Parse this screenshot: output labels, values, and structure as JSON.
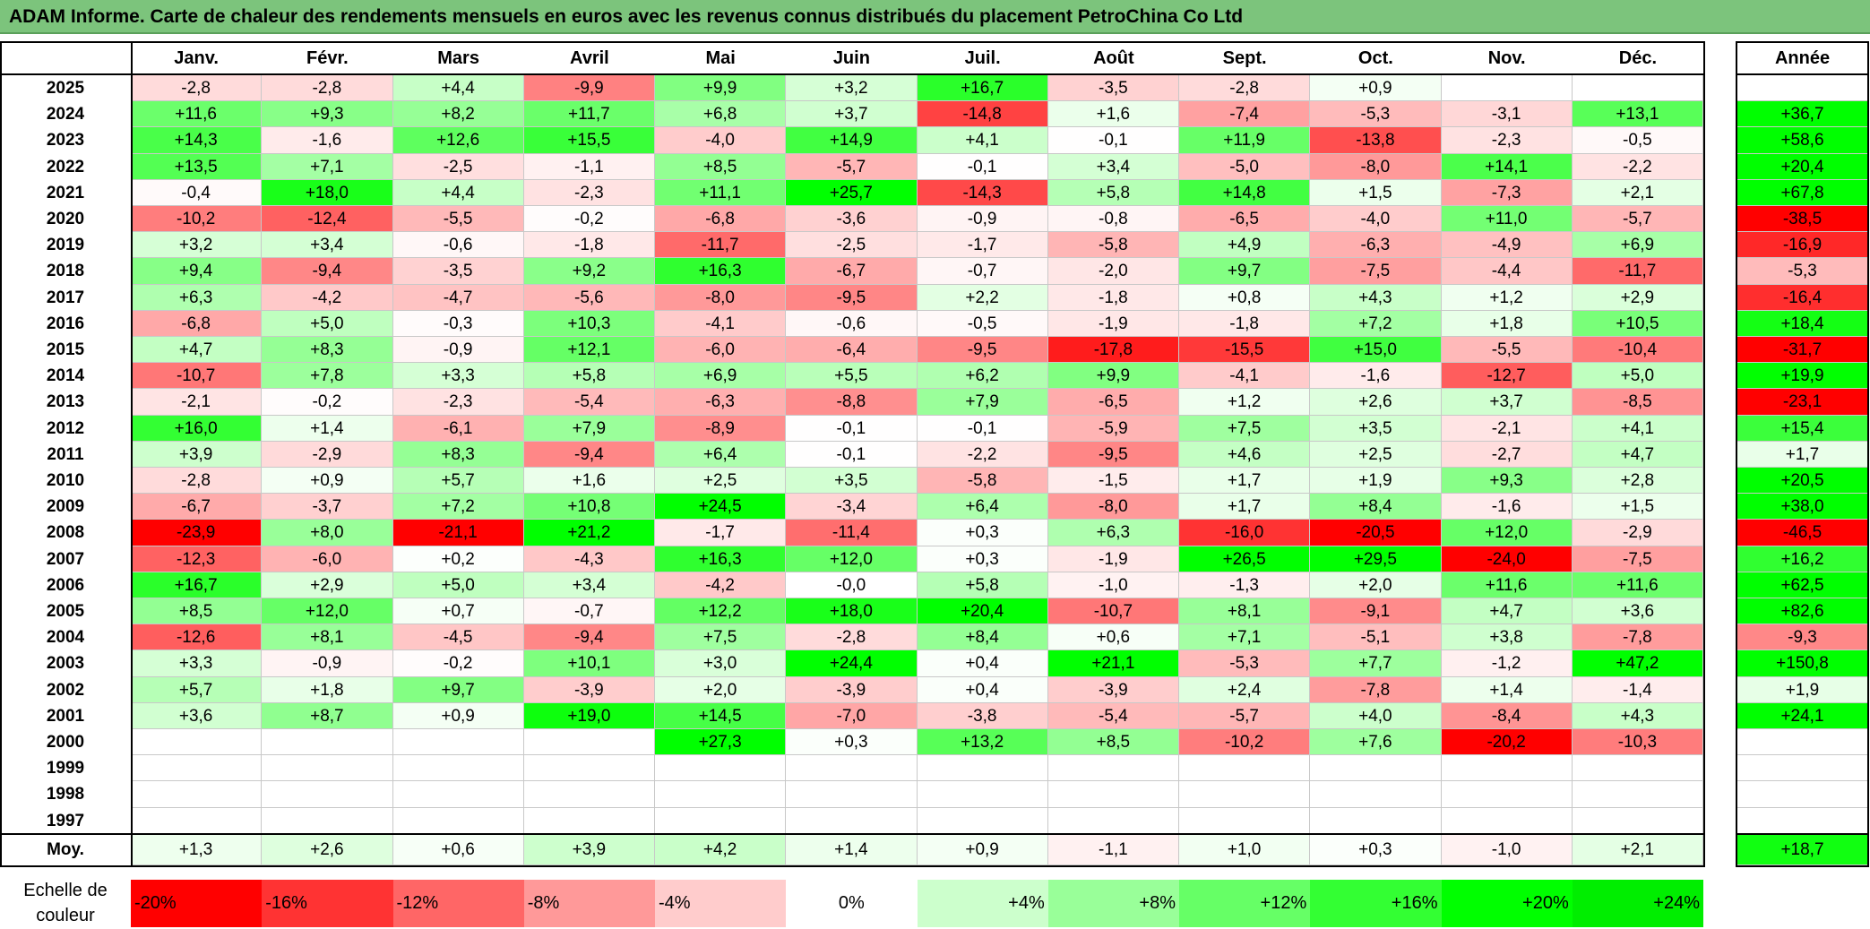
{
  "title": "ADAM Informe. Carte de chaleur des rendements mensuels en euros avec les revenus connus distribués du placement PetroChina Co Ltd",
  "months": [
    "Janv.",
    "Févr.",
    "Mars",
    "Avril",
    "Mai",
    "Juin",
    "Juil.",
    "Août",
    "Sept.",
    "Oct.",
    "Nov.",
    "Déc."
  ],
  "year_header": "Année",
  "avg_label": "Moy.",
  "scale_label": "Echelle de couleur",
  "chart_data": {
    "type": "heatmap",
    "title": "ADAM Informe. Carte de chaleur des rendements mensuels en euros avec les revenus connus distribués du placement PetroChina Co Ltd",
    "columns": [
      "Janv.",
      "Févr.",
      "Mars",
      "Avril",
      "Mai",
      "Juin",
      "Juil.",
      "Août",
      "Sept.",
      "Oct.",
      "Nov.",
      "Déc."
    ],
    "total_column": "Année",
    "rows": [
      {
        "year": "2025",
        "values": [
          "-2,8",
          "-2,8",
          "+4,4",
          "-9,9",
          "+9,9",
          "+3,2",
          "+16,7",
          "-3,5",
          "-2,8",
          "+0,9",
          "",
          ""
        ],
        "total": ""
      },
      {
        "year": "2024",
        "values": [
          "+11,6",
          "+9,3",
          "+8,2",
          "+11,7",
          "+6,8",
          "+3,7",
          "-14,8",
          "+1,6",
          "-7,4",
          "-5,3",
          "-3,1",
          "+13,1"
        ],
        "total": "+36,7"
      },
      {
        "year": "2023",
        "values": [
          "+14,3",
          "-1,6",
          "+12,6",
          "+15,5",
          "-4,0",
          "+14,9",
          "+4,1",
          "-0,1",
          "+11,9",
          "-13,8",
          "-2,3",
          "-0,5"
        ],
        "total": "+58,6"
      },
      {
        "year": "2022",
        "values": [
          "+13,5",
          "+7,1",
          "-2,5",
          "-1,1",
          "+8,5",
          "-5,7",
          "-0,1",
          "+3,4",
          "-5,0",
          "-8,0",
          "+14,1",
          "-2,2"
        ],
        "total": "+20,4"
      },
      {
        "year": "2021",
        "values": [
          "-0,4",
          "+18,0",
          "+4,4",
          "-2,3",
          "+11,1",
          "+25,7",
          "-14,3",
          "+5,8",
          "+14,8",
          "+1,5",
          "-7,3",
          "+2,1"
        ],
        "total": "+67,8"
      },
      {
        "year": "2020",
        "values": [
          "-10,2",
          "-12,4",
          "-5,5",
          "-0,2",
          "-6,8",
          "-3,6",
          "-0,9",
          "-0,8",
          "-6,5",
          "-4,0",
          "+11,0",
          "-5,7"
        ],
        "total": "-38,5"
      },
      {
        "year": "2019",
        "values": [
          "+3,2",
          "+3,4",
          "-0,6",
          "-1,8",
          "-11,7",
          "-2,5",
          "-1,7",
          "-5,8",
          "+4,9",
          "-6,3",
          "-4,9",
          "+6,9"
        ],
        "total": "-16,9"
      },
      {
        "year": "2018",
        "values": [
          "+9,4",
          "-9,4",
          "-3,5",
          "+9,2",
          "+16,3",
          "-6,7",
          "-0,7",
          "-2,0",
          "+9,7",
          "-7,5",
          "-4,4",
          "-11,7"
        ],
        "total": "-5,3"
      },
      {
        "year": "2017",
        "values": [
          "+6,3",
          "-4,2",
          "-4,7",
          "-5,6",
          "-8,0",
          "-9,5",
          "+2,2",
          "-1,8",
          "+0,8",
          "+4,3",
          "+1,2",
          "+2,9"
        ],
        "total": "-16,4"
      },
      {
        "year": "2016",
        "values": [
          "-6,8",
          "+5,0",
          "-0,3",
          "+10,3",
          "-4,1",
          "-0,6",
          "-0,5",
          "-1,9",
          "-1,8",
          "+7,2",
          "+1,8",
          "+10,5"
        ],
        "total": "+18,4"
      },
      {
        "year": "2015",
        "values": [
          "+4,7",
          "+8,3",
          "-0,9",
          "+12,1",
          "-6,0",
          "-6,4",
          "-9,5",
          "-17,8",
          "-15,5",
          "+15,0",
          "-5,5",
          "-10,4"
        ],
        "total": "-31,7"
      },
      {
        "year": "2014",
        "values": [
          "-10,7",
          "+7,8",
          "+3,3",
          "+5,8",
          "+6,9",
          "+5,5",
          "+6,2",
          "+9,9",
          "-4,1",
          "-1,6",
          "-12,7",
          "+5,0"
        ],
        "total": "+19,9"
      },
      {
        "year": "2013",
        "values": [
          "-2,1",
          "-0,2",
          "-2,3",
          "-5,4",
          "-6,3",
          "-8,8",
          "+7,9",
          "-6,5",
          "+1,2",
          "+2,6",
          "+3,7",
          "-8,5"
        ],
        "total": "-23,1"
      },
      {
        "year": "2012",
        "values": [
          "+16,0",
          "+1,4",
          "-6,1",
          "+7,9",
          "-8,9",
          "-0,1",
          "-0,1",
          "-5,9",
          "+7,5",
          "+3,5",
          "-2,1",
          "+4,1"
        ],
        "total": "+15,4"
      },
      {
        "year": "2011",
        "values": [
          "+3,9",
          "-2,9",
          "+8,3",
          "-9,4",
          "+6,4",
          "-0,1",
          "-2,2",
          "-9,5",
          "+4,6",
          "+2,5",
          "-2,7",
          "+4,7"
        ],
        "total": "+1,7"
      },
      {
        "year": "2010",
        "values": [
          "-2,8",
          "+0,9",
          "+5,7",
          "+1,6",
          "+2,5",
          "+3,5",
          "-5,8",
          "-1,5",
          "+1,7",
          "+1,9",
          "+9,3",
          "+2,8"
        ],
        "total": "+20,5"
      },
      {
        "year": "2009",
        "values": [
          "-6,7",
          "-3,7",
          "+7,2",
          "+10,8",
          "+24,5",
          "-3,4",
          "+6,4",
          "-8,0",
          "+1,7",
          "+8,4",
          "-1,6",
          "+1,5"
        ],
        "total": "+38,0"
      },
      {
        "year": "2008",
        "values": [
          "-23,9",
          "+8,0",
          "-21,1",
          "+21,2",
          "-1,7",
          "-11,4",
          "+0,3",
          "+6,3",
          "-16,0",
          "-20,5",
          "+12,0",
          "-2,9"
        ],
        "total": "-46,5"
      },
      {
        "year": "2007",
        "values": [
          "-12,3",
          "-6,0",
          "+0,2",
          "-4,3",
          "+16,3",
          "+12,0",
          "+0,3",
          "-1,9",
          "+26,5",
          "+29,5",
          "-24,0",
          "-7,5"
        ],
        "total": "+16,2"
      },
      {
        "year": "2006",
        "values": [
          "+16,7",
          "+2,9",
          "+5,0",
          "+3,4",
          "-4,2",
          "-0,0",
          "+5,8",
          "-1,0",
          "-1,3",
          "+2,0",
          "+11,6",
          "+11,6"
        ],
        "total": "+62,5"
      },
      {
        "year": "2005",
        "values": [
          "+8,5",
          "+12,0",
          "+0,7",
          "-0,7",
          "+12,2",
          "+18,0",
          "+20,4",
          "-10,7",
          "+8,1",
          "-9,1",
          "+4,7",
          "+3,6"
        ],
        "total": "+82,6"
      },
      {
        "year": "2004",
        "values": [
          "-12,6",
          "+8,1",
          "-4,5",
          "-9,4",
          "+7,5",
          "-2,8",
          "+8,4",
          "+0,6",
          "+7,1",
          "-5,1",
          "+3,8",
          "-7,8"
        ],
        "total": "-9,3"
      },
      {
        "year": "2003",
        "values": [
          "+3,3",
          "-0,9",
          "-0,2",
          "+10,1",
          "+3,0",
          "+24,4",
          "+0,4",
          "+21,1",
          "-5,3",
          "+7,7",
          "-1,2",
          "+47,2"
        ],
        "total": "+150,8"
      },
      {
        "year": "2002",
        "values": [
          "+5,7",
          "+1,8",
          "+9,7",
          "-3,9",
          "+2,0",
          "-3,9",
          "+0,4",
          "-3,9",
          "+2,4",
          "-7,8",
          "+1,4",
          "-1,4"
        ],
        "total": "+1,9"
      },
      {
        "year": "2001",
        "values": [
          "+3,6",
          "+8,7",
          "+0,9",
          "+19,0",
          "+14,5",
          "-7,0",
          "-3,8",
          "-5,4",
          "-5,7",
          "+4,0",
          "-8,4",
          "+4,3"
        ],
        "total": "+24,1"
      },
      {
        "year": "2000",
        "values": [
          "",
          "",
          "",
          "",
          "+27,3",
          "+0,3",
          "+13,2",
          "+8,5",
          "-10,2",
          "+7,6",
          "-20,2",
          "-10,3"
        ],
        "total": ""
      },
      {
        "year": "1999",
        "values": [
          "",
          "",
          "",
          "",
          "",
          "",
          "",
          "",
          "",
          "",
          "",
          ""
        ],
        "total": ""
      },
      {
        "year": "1998",
        "values": [
          "",
          "",
          "",
          "",
          "",
          "",
          "",
          "",
          "",
          "",
          "",
          ""
        ],
        "total": ""
      },
      {
        "year": "1997",
        "values": [
          "",
          "",
          "",
          "",
          "",
          "",
          "",
          "",
          "",
          "",
          "",
          ""
        ],
        "total": ""
      }
    ],
    "average": {
      "values": [
        "+1,3",
        "+2,6",
        "+0,6",
        "+3,9",
        "+4,2",
        "+1,4",
        "+0,9",
        "-1,1",
        "+1,0",
        "+0,3",
        "-1,0",
        "+2,1"
      ],
      "total": "+18,7"
    },
    "color_scale": [
      {
        "label": "-20%",
        "value": -20,
        "color": "#ff0000"
      },
      {
        "label": "-16%",
        "value": -16,
        "color": "#ff3333"
      },
      {
        "label": "-12%",
        "value": -12,
        "color": "#ff6666"
      },
      {
        "label": "-8%",
        "value": -8,
        "color": "#ff9999"
      },
      {
        "label": "-4%",
        "value": -4,
        "color": "#ffcccc"
      },
      {
        "label": "0%",
        "value": 0,
        "color": "#ffffff"
      },
      {
        "label": "+4%",
        "value": 4,
        "color": "#ccffcc"
      },
      {
        "label": "+8%",
        "value": 8,
        "color": "#99ff99"
      },
      {
        "label": "+12%",
        "value": 12,
        "color": "#66ff66"
      },
      {
        "label": "+16%",
        "value": 16,
        "color": "#33ff33"
      },
      {
        "label": "+20%",
        "value": 20,
        "color": "#00ff00"
      },
      {
        "label": "+24%",
        "value": 24,
        "color": "#00ee00"
      }
    ]
  }
}
